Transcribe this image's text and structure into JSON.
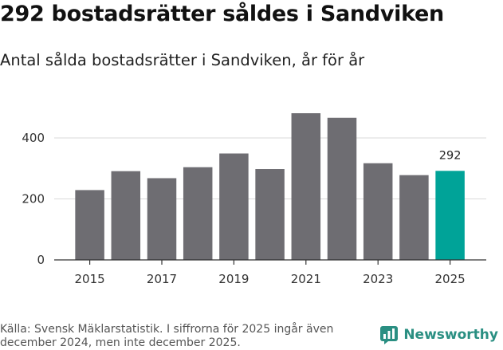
{
  "header": {
    "title": "292 bostadsrätter såldes i Sandviken",
    "subtitle": "Antal sålda bostadsrätter i Sandviken, år för år"
  },
  "footer": {
    "source": "Källa: Svensk Mäklarstatistik. I siffrorna för 2025 ingår även december 2024, men inte december 2025.",
    "brand_name": "Newsworthy",
    "brand_icon": "newsworthy-logo-icon"
  },
  "colors": {
    "bar": "#6e6d72",
    "highlight": "#00a398",
    "grid": "#d9d9d9",
    "brand": "#2a8f82"
  },
  "chart_data": {
    "type": "bar",
    "title": "292 bostadsrätter såldes i Sandviken",
    "subtitle": "Antal sålda bostadsrätter i Sandviken, år för år",
    "xlabel": "",
    "ylabel": "",
    "categories": [
      "2015",
      "2016",
      "2017",
      "2018",
      "2019",
      "2020",
      "2021",
      "2022",
      "2023",
      "2024",
      "2025"
    ],
    "values": [
      229,
      291,
      268,
      304,
      349,
      298,
      481,
      466,
      317,
      278,
      292
    ],
    "highlight_category": "2025",
    "data_labels": [
      {
        "category": "2025",
        "text": "292"
      }
    ],
    "x_tick_labels": [
      "2015",
      "2017",
      "2019",
      "2021",
      "2023",
      "2025"
    ],
    "y_ticks": [
      0,
      200,
      400
    ],
    "y_tick_labels": [
      "0",
      "200",
      "400"
    ],
    "ylim": [
      0,
      520
    ],
    "grid": true
  }
}
